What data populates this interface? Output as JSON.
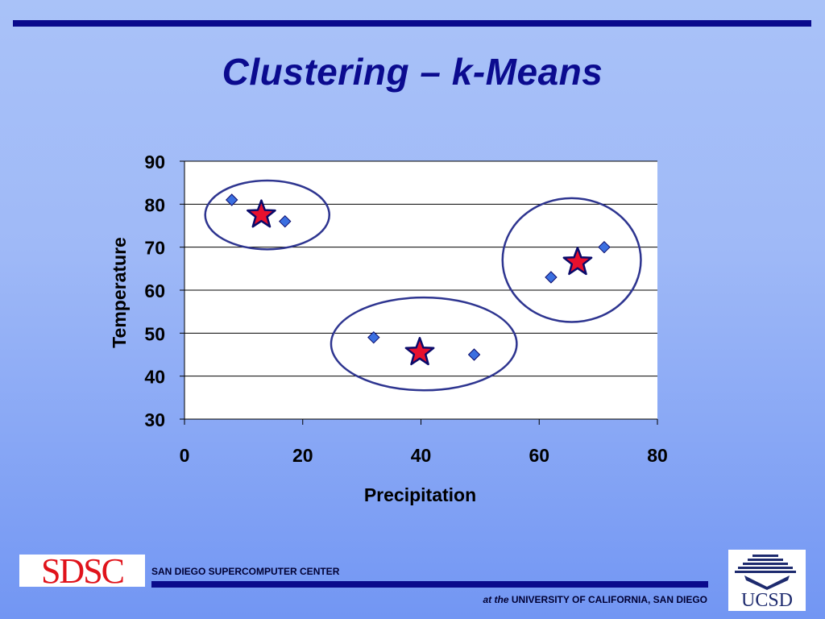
{
  "slide": {
    "title": "Clustering – k-Means"
  },
  "chart_data": {
    "type": "scatter",
    "title": "",
    "xlabel": "Precipitation",
    "ylabel": "Temperature",
    "xlim": [
      0,
      80
    ],
    "ylim": [
      30,
      90
    ],
    "x_ticks": [
      0,
      20,
      40,
      60,
      80
    ],
    "y_ticks": [
      30,
      40,
      50,
      60,
      70,
      80,
      90
    ],
    "grid": "horizontal",
    "legend": "none",
    "points": [
      {
        "x": 8,
        "y": 81
      },
      {
        "x": 17,
        "y": 76
      },
      {
        "x": 32,
        "y": 49
      },
      {
        "x": 49,
        "y": 45
      },
      {
        "x": 62,
        "y": 63
      },
      {
        "x": 71,
        "y": 70
      }
    ],
    "centroids": [
      {
        "x": 13,
        "y": 77.5
      },
      {
        "x": 39.8,
        "y": 45.5
      },
      {
        "x": 66.5,
        "y": 66.5
      }
    ],
    "clusters": [
      {
        "cx": 14,
        "cy": 77.5,
        "rx": 10.5,
        "ry": 8
      },
      {
        "cx": 40.5,
        "cy": 47.5,
        "rx": 15.7,
        "ry": 10.8
      },
      {
        "cx": 65.5,
        "cy": 67,
        "rx": 11.7,
        "ry": 14.4
      }
    ],
    "colors": {
      "point_fill": "#3b6fe0",
      "point_stroke": "#0a0a6a",
      "centroid_fill": "#e8102e",
      "centroid_stroke": "#0a0a6a",
      "ellipse_stroke": "#2e3590",
      "plot_bg": "#ffffff",
      "grid": "#000000"
    }
  },
  "footer": {
    "logo_left": "SDSC",
    "center_name": "SAN DIEGO SUPERCOMPUTER CENTER",
    "at": "at the",
    "university": "UNIVERSITY OF CALIFORNIA, SAN DIEGO",
    "logo_right": "UCSD"
  }
}
